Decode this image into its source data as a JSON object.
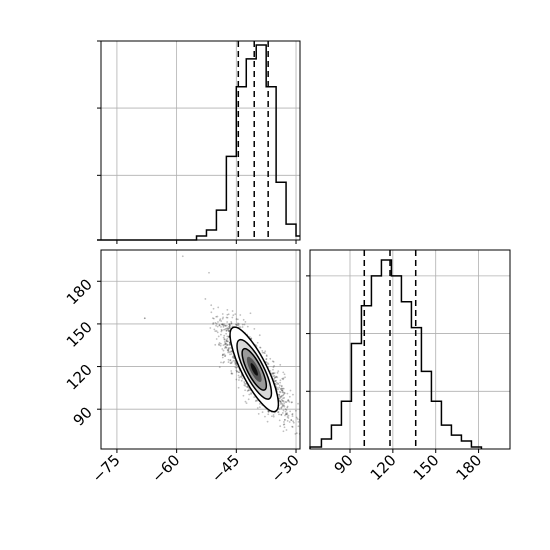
{
  "chart_data": [
    {
      "type": "histogram",
      "panel": "top-left",
      "parameter_axis": "x",
      "xlim": [
        -79,
        -29
      ],
      "ylim": [
        0,
        1.0
      ],
      "grid": true,
      "bin_edges": [
        -80,
        -55,
        -52.5,
        -50,
        -47.5,
        -45,
        -42.5,
        -40,
        -37.5,
        -35,
        -32.5,
        -30,
        -29
      ],
      "counts": [
        0,
        0.02,
        0.05,
        0.15,
        0.42,
        0.77,
        0.91,
        0.98,
        0.77,
        0.29,
        0.08,
        0.02
      ],
      "quantile_lines": [
        -44.5,
        -40.5,
        -37
      ],
      "xticks": [
        -75,
        -60,
        -45,
        -30
      ],
      "yticks_count": 3
    },
    {
      "type": "scatter-contour",
      "panel": "bottom-left",
      "xlim": [
        -79,
        -29
      ],
      "ylim": [
        62,
        202
      ],
      "grid": true,
      "xticks": [
        -75,
        -60,
        -45,
        -30
      ],
      "yticks": [
        90,
        120,
        150,
        180
      ],
      "xtick_labels": [
        "−75",
        "−60",
        "−45",
        "−30"
      ],
      "ytick_labels": [
        "90",
        "120",
        "150",
        "180"
      ],
      "correlation": "negative",
      "center": [
        -40.5,
        118
      ],
      "outlier_point": [
        -68,
        154
      ]
    },
    {
      "type": "histogram",
      "panel": "bottom-right",
      "parameter_axis": "x",
      "xlim": [
        62,
        202
      ],
      "ylim": [
        0,
        1.0
      ],
      "grid": true,
      "bin_edges": [
        62,
        70,
        77,
        84,
        91,
        98,
        105,
        112,
        119,
        126,
        133,
        140,
        147,
        154,
        161,
        168,
        175,
        182
      ],
      "counts": [
        0.01,
        0.05,
        0.12,
        0.24,
        0.53,
        0.72,
        0.87,
        0.95,
        0.87,
        0.74,
        0.61,
        0.39,
        0.24,
        0.12,
        0.07,
        0.04,
        0.01
      ],
      "quantile_lines": [
        100,
        118,
        136
      ],
      "xticks": [
        90,
        120,
        150,
        180
      ],
      "xtick_labels": [
        "90",
        "120",
        "150",
        "180"
      ],
      "yticks_count": 3
    }
  ]
}
